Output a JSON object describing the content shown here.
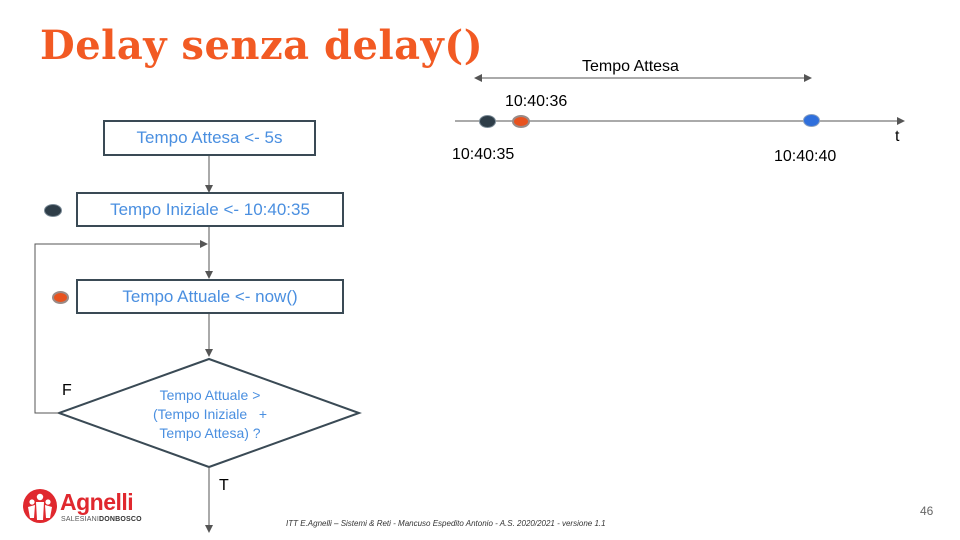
{
  "title": "Delay senza delay()",
  "flowchart": {
    "box1": "Tempo Attesa <- 5s",
    "box2": "Tempo Iniziale <- 10:40:35",
    "box3": "Tempo Attuale <- now()",
    "decision_line1": "Tempo Attuale >",
    "decision_line2": "(Tempo Iniziale   +",
    "decision_line3": "Tempo Attesa) ?",
    "false_label": "F",
    "true_label": "T"
  },
  "timeline": {
    "span_label": "Tempo Attesa",
    "axis_label": "t",
    "point_start": "10:40:35",
    "point_current": "10:40:36",
    "point_end": "10:40:40"
  },
  "colors": {
    "title": "#f25a23",
    "box_text": "#4a8fe0",
    "dot_start": "#2e3d48",
    "dot_current": "#e8521e",
    "dot_end": "#2f6fdc"
  },
  "logo": {
    "name": "Agnelli",
    "sub_left": "SALESIANI",
    "sub_right": "DONBOSCO"
  },
  "footer": "ITT E.Agnelli – Sistemi & Reti - Mancuso  Espedito Antonio - A.S. 2020/2021 - versione 1.1",
  "page_number": "46"
}
